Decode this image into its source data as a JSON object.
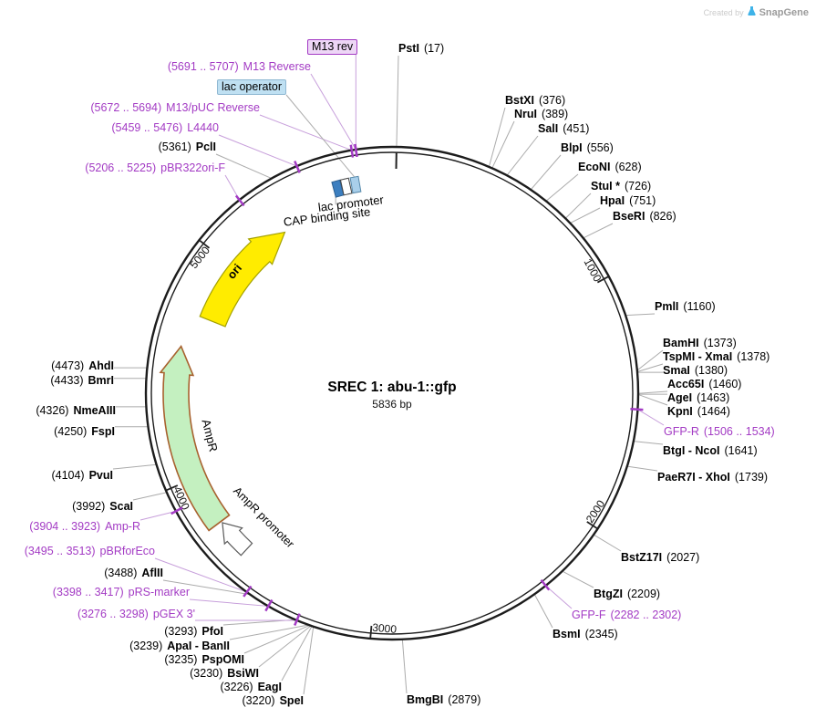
{
  "watermark": {
    "created_by": "Created by",
    "brand": "SnapGene"
  },
  "plasmid": {
    "title": "SREC 1: abu-1::gfp",
    "length": 5836,
    "length_label": "5836 bp"
  },
  "scale_markers": [
    1000,
    2000,
    3000,
    4000,
    5000
  ],
  "colors": {
    "ring": "#1C1C1C",
    "enzyme_line": "#ABABAB",
    "primer": "#A33BC4",
    "primer_line": "#C79FDB",
    "ori_fill": "#FFEC00",
    "ori_stroke": "#A3A000",
    "ampr_fill": "#C4F0C0",
    "ampr_stroke": "#A8622F",
    "promoter_fill": "#FFFFFF",
    "promoter_stroke": "#5A5A5A"
  },
  "features": {
    "ori": {
      "label": "ori"
    },
    "ampr": {
      "label": "AmpR"
    },
    "ampr_promoter": {
      "label": "AmpR promoter"
    }
  },
  "region_boxes": [
    {
      "name": "CAP binding site",
      "bp": 5595,
      "fill": "#3C7FC0",
      "stroke": "#2B5E90"
    },
    {
      "name": "lac promoter",
      "bp": 5633,
      "fill": "#FFFFFF",
      "stroke": "#444444"
    },
    {
      "name": "lac operator",
      "bp": 5675,
      "fill": "#A9CFEA",
      "stroke": "#5588AA"
    }
  ],
  "sites": [
    {
      "name": "PstI",
      "pos": "(17)",
      "bp": 17,
      "kind": "enzyme",
      "tick": true
    },
    {
      "name": "BstXI",
      "pos": "(376)",
      "bp": 376,
      "kind": "enzyme"
    },
    {
      "name": "NruI",
      "pos": "(389)",
      "bp": 389,
      "kind": "enzyme"
    },
    {
      "name": "SalI",
      "pos": "(451)",
      "bp": 451,
      "kind": "enzyme"
    },
    {
      "name": "BlpI",
      "pos": "(556)",
      "bp": 556,
      "kind": "enzyme"
    },
    {
      "name": "EcoNI",
      "pos": "(628)",
      "bp": 628,
      "kind": "enzyme"
    },
    {
      "name": "StuI *",
      "pos": "(726)",
      "bp": 726,
      "kind": "enzyme"
    },
    {
      "name": "HpaI",
      "pos": "(751)",
      "bp": 751,
      "kind": "enzyme"
    },
    {
      "name": "BseRI",
      "pos": "(826)",
      "bp": 826,
      "kind": "enzyme"
    },
    {
      "name": "PmlI",
      "pos": "(1160)",
      "bp": 1160,
      "kind": "enzyme"
    },
    {
      "name": "BamHI",
      "pos": "(1373)",
      "bp": 1373,
      "kind": "enzyme"
    },
    {
      "name": "TspMI - XmaI",
      "pos": "(1378)",
      "bp": 1378,
      "kind": "enzyme"
    },
    {
      "name": "SmaI",
      "pos": "(1380)",
      "bp": 1380,
      "kind": "enzyme"
    },
    {
      "name": "Acc65I",
      "pos": "(1460)",
      "bp": 1460,
      "kind": "enzyme"
    },
    {
      "name": "AgeI",
      "pos": "(1463)",
      "bp": 1463,
      "kind": "enzyme"
    },
    {
      "name": "KpnI",
      "pos": "(1464)",
      "bp": 1464,
      "kind": "enzyme"
    },
    {
      "name": "GFP-R",
      "pos": "(1506 .. 1534)",
      "bp": 1520,
      "kind": "primer"
    },
    {
      "name": "BtgI - NcoI",
      "pos": "(1641)",
      "bp": 1641,
      "kind": "enzyme"
    },
    {
      "name": "PaeR7I - XhoI",
      "pos": "(1739)",
      "bp": 1739,
      "kind": "enzyme"
    },
    {
      "name": "BstZ17I",
      "pos": "(2027)",
      "bp": 2027,
      "kind": "enzyme"
    },
    {
      "name": "BtgZI",
      "pos": "(2209)",
      "bp": 2209,
      "kind": "enzyme"
    },
    {
      "name": "GFP-F",
      "pos": "(2282 .. 2302)",
      "bp": 2292,
      "kind": "primer"
    },
    {
      "name": "BsmI",
      "pos": "(2345)",
      "bp": 2345,
      "kind": "enzyme"
    },
    {
      "name": "BmgBI",
      "pos": "(2879)",
      "bp": 2879,
      "kind": "enzyme"
    },
    {
      "name": "SpeI",
      "pos": "(3220)",
      "bp": 3220,
      "kind": "enzyme"
    },
    {
      "name": "EagI",
      "pos": "(3226)",
      "bp": 3226,
      "kind": "enzyme"
    },
    {
      "name": "BsiWI",
      "pos": "(3230)",
      "bp": 3230,
      "kind": "enzyme"
    },
    {
      "name": "PspOMI",
      "pos": "(3235)",
      "bp": 3235,
      "kind": "enzyme"
    },
    {
      "name": "ApaI - BanII",
      "pos": "(3239)",
      "bp": 3239,
      "kind": "enzyme"
    },
    {
      "name": "PfoI",
      "pos": "(3293)",
      "bp": 3293,
      "kind": "enzyme"
    },
    {
      "name": "pGEX 3'",
      "pos": "(3276 .. 3298)",
      "bp": 3287,
      "kind": "primer"
    },
    {
      "name": "pRS-marker",
      "pos": "(3398 .. 3417)",
      "bp": 3407,
      "kind": "primer"
    },
    {
      "name": "AflII",
      "pos": "(3488)",
      "bp": 3488,
      "kind": "enzyme"
    },
    {
      "name": "pBRforEco",
      "pos": "(3495 .. 3513)",
      "bp": 3504,
      "kind": "primer"
    },
    {
      "name": "Amp-R",
      "pos": "(3904 .. 3923)",
      "bp": 3913,
      "kind": "primer"
    },
    {
      "name": "ScaI",
      "pos": "(3992)",
      "bp": 3992,
      "kind": "enzyme"
    },
    {
      "name": "PvuI",
      "pos": "(4104)",
      "bp": 4104,
      "kind": "enzyme"
    },
    {
      "name": "FspI",
      "pos": "(4250)",
      "bp": 4250,
      "kind": "enzyme"
    },
    {
      "name": "NmeAIII",
      "pos": "(4326)",
      "bp": 4326,
      "kind": "enzyme"
    },
    {
      "name": "BmrI",
      "pos": "(4433)",
      "bp": 4433,
      "kind": "enzyme"
    },
    {
      "name": "AhdI",
      "pos": "(4473)",
      "bp": 4473,
      "kind": "enzyme"
    },
    {
      "name": "pBR322ori-F",
      "pos": "(5206 .. 5225)",
      "bp": 5215,
      "kind": "primer"
    },
    {
      "name": "PclI",
      "pos": "(5361)",
      "bp": 5361,
      "kind": "enzyme"
    },
    {
      "name": "L4440",
      "pos": "(5459 .. 5476)",
      "bp": 5467,
      "kind": "primer"
    },
    {
      "name": "M13/pUC Reverse",
      "pos": "(5672 .. 5694)",
      "bp": 5683,
      "kind": "primer"
    },
    {
      "name": "M13 Reverse",
      "pos": "(5691 .. 5707)",
      "bp": 5699,
      "kind": "primer"
    },
    {
      "name": "M13 rev",
      "pos": "",
      "bp": 5699,
      "kind": "feature-purple"
    },
    {
      "name": "lac operator",
      "pos": "",
      "bp": 5675,
      "kind": "feature-blue",
      "line_r": 241
    },
    {
      "name": "lac promoter",
      "pos": "",
      "bp": 5633,
      "kind": "feature-label",
      "line_r": 241
    },
    {
      "name": "CAP binding site",
      "pos": "",
      "bp": 5595,
      "kind": "feature-label",
      "line_r": 241
    }
  ]
}
